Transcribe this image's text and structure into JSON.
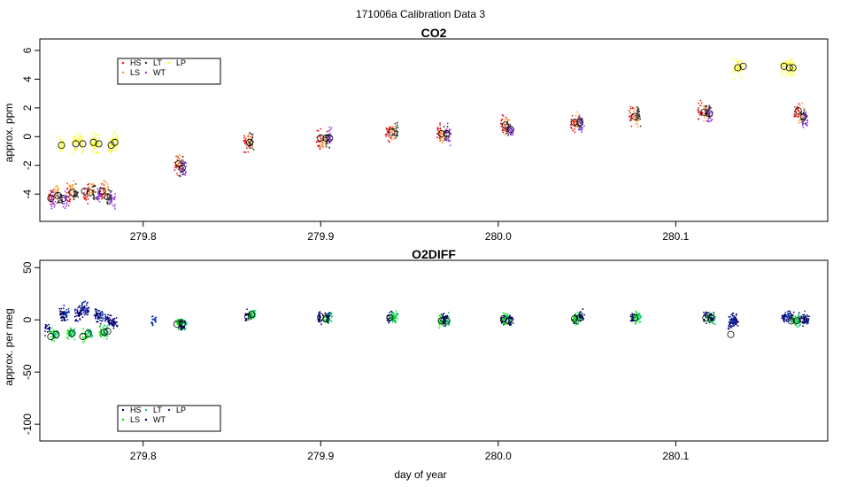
{
  "figure": {
    "title": "171006a   Calibration Data 3",
    "xlabel": "day of year"
  },
  "chart_data": [
    {
      "type": "scatter",
      "title": "CO2",
      "xlabel": "",
      "ylabel": "approx. ppm",
      "xlim": [
        279.7418,
        280.1856
      ],
      "ylim": [
        -5.9,
        6.8
      ],
      "xticks": [
        279.8,
        279.9,
        280.0,
        280.1
      ],
      "yticks": [
        -4,
        -2,
        0,
        2,
        4,
        6
      ],
      "legend": {
        "placement": "top-left",
        "entries": [
          {
            "label": "HS",
            "color": "#ee1111"
          },
          {
            "label": "LS",
            "color": "#ff9933"
          },
          {
            "label": "LT",
            "color": "#333333"
          },
          {
            "label": "WT",
            "color": "#9933ee"
          },
          {
            "label": "LP",
            "color": "#ffff00"
          }
        ]
      },
      "series": [
        {
          "name": "LP",
          "color": "#ffff00",
          "points": [
            [
              279.754,
              -0.6
            ],
            [
              279.762,
              -0.5
            ],
            [
              279.765,
              -0.5
            ],
            [
              279.772,
              -0.4
            ],
            [
              279.774,
              -0.5
            ],
            [
              279.782,
              -0.6
            ],
            [
              279.784,
              -0.4
            ],
            [
              280.134,
              4.8
            ],
            [
              280.137,
              4.9
            ],
            [
              280.161,
              4.9
            ],
            [
              280.164,
              4.8
            ],
            [
              280.166,
              4.8
            ]
          ]
        },
        {
          "name": "HS",
          "color": "#ee1111",
          "points": [
            [
              279.748,
              -4.2
            ],
            [
              279.758,
              -4.0
            ],
            [
              279.768,
              -3.9
            ],
            [
              279.777,
              -3.9
            ],
            [
              279.819,
              -2.0
            ],
            [
              279.858,
              -0.4
            ],
            [
              279.899,
              -0.2
            ],
            [
              279.938,
              0.3
            ],
            [
              279.967,
              0.2
            ],
            [
              280.003,
              0.8
            ],
            [
              280.042,
              1.0
            ],
            [
              280.075,
              1.4
            ],
            [
              280.114,
              1.7
            ],
            [
              280.168,
              1.8
            ]
          ]
        },
        {
          "name": "LS",
          "color": "#ff9933",
          "points": [
            [
              279.751,
              -4.0
            ],
            [
              279.76,
              -3.8
            ],
            [
              279.771,
              -3.7
            ],
            [
              279.779,
              -3.8
            ],
            [
              279.821,
              -1.9
            ],
            [
              279.86,
              -0.5
            ],
            [
              279.902,
              -0.3
            ],
            [
              279.941,
              0.2
            ],
            [
              279.969,
              0.1
            ],
            [
              280.005,
              0.7
            ],
            [
              280.045,
              1.1
            ],
            [
              280.078,
              1.3
            ],
            [
              280.117,
              1.6
            ],
            [
              280.171,
              1.5
            ]
          ]
        },
        {
          "name": "LT",
          "color": "#333333",
          "points": [
            [
              279.753,
              -4.3
            ],
            [
              279.762,
              -4.1
            ],
            [
              279.773,
              -3.9
            ],
            [
              279.781,
              -4.2
            ],
            [
              279.822,
              -2.1
            ],
            [
              279.861,
              -0.4
            ],
            [
              279.904,
              -0.2
            ],
            [
              279.942,
              0.4
            ],
            [
              279.971,
              0.3
            ],
            [
              280.006,
              0.6
            ],
            [
              280.046,
              1.0
            ],
            [
              280.079,
              1.4
            ],
            [
              280.118,
              1.8
            ],
            [
              280.172,
              1.3
            ]
          ]
        },
        {
          "name": "WT",
          "color": "#9933ee",
          "points": [
            [
              279.749,
              -4.4
            ],
            [
              279.756,
              -4.5
            ],
            [
              279.775,
              -4.0
            ],
            [
              279.783,
              -4.3
            ],
            [
              279.823,
              -2.2
            ],
            [
              279.905,
              -0.1
            ],
            [
              279.972,
              0.2
            ],
            [
              280.007,
              0.4
            ],
            [
              280.047,
              0.9
            ],
            [
              280.119,
              1.5
            ],
            [
              280.173,
              1.2
            ]
          ]
        }
      ],
      "means": [
        [
          279.748,
          -4.3
        ],
        [
          279.752,
          -4.1
        ],
        [
          279.755,
          -4.3
        ],
        [
          279.76,
          -3.9
        ],
        [
          279.767,
          -3.8
        ],
        [
          279.77,
          -3.9
        ],
        [
          279.777,
          -3.8
        ],
        [
          279.78,
          -4.2
        ],
        [
          279.754,
          -0.6
        ],
        [
          279.762,
          -0.5
        ],
        [
          279.766,
          -0.5
        ],
        [
          279.772,
          -0.4
        ],
        [
          279.775,
          -0.5
        ],
        [
          279.782,
          -0.6
        ],
        [
          279.784,
          -0.4
        ],
        [
          279.82,
          -1.9
        ],
        [
          279.822,
          -2.2
        ],
        [
          279.86,
          -0.4
        ],
        [
          279.9,
          -0.1
        ],
        [
          279.903,
          -0.1
        ],
        [
          279.905,
          -0.1
        ],
        [
          279.94,
          0.3
        ],
        [
          279.968,
          0.2
        ],
        [
          279.971,
          0.2
        ],
        [
          280.004,
          0.8
        ],
        [
          280.007,
          0.5
        ],
        [
          280.043,
          1.0
        ],
        [
          280.046,
          1.0
        ],
        [
          280.077,
          1.4
        ],
        [
          280.116,
          1.7
        ],
        [
          280.119,
          1.6
        ],
        [
          280.135,
          4.8
        ],
        [
          280.138,
          4.9
        ],
        [
          280.161,
          4.9
        ],
        [
          280.164,
          4.8
        ],
        [
          280.166,
          4.8
        ],
        [
          280.169,
          1.8
        ],
        [
          280.172,
          1.4
        ]
      ]
    },
    {
      "type": "scatter",
      "title": "O2DIFF",
      "xlabel": "day of year",
      "ylabel": "approx. per meg",
      "xlim": [
        279.7418,
        280.1856
      ],
      "ylim": [
        -116,
        57
      ],
      "xticks": [
        279.8,
        279.9,
        280.0,
        280.1
      ],
      "yticks": [
        -100,
        -50,
        0,
        50
      ],
      "legend": {
        "placement": "bottom-left",
        "entries": [
          {
            "label": "HS",
            "color": "#000080"
          },
          {
            "label": "LS",
            "color": "#00ee00"
          },
          {
            "label": "LT",
            "color": "#00cc66"
          },
          {
            "label": "WT",
            "color": "#000066"
          },
          {
            "label": "LP",
            "color": "#1133aa"
          }
        ]
      },
      "series": [
        {
          "name": "HS",
          "color": "#000080",
          "points": [
            [
              279.746,
              -9
            ],
            [
              279.754,
              7
            ],
            [
              279.763,
              5
            ],
            [
              279.768,
              10
            ],
            [
              279.774,
              4
            ],
            [
              279.78,
              0
            ],
            [
              279.784,
              -2
            ],
            [
              279.821,
              -4
            ],
            [
              279.859,
              4
            ],
            [
              279.9,
              3
            ],
            [
              279.939,
              3
            ],
            [
              279.969,
              0
            ],
            [
              280.003,
              1
            ],
            [
              280.043,
              1
            ],
            [
              280.076,
              2
            ],
            [
              280.117,
              3
            ],
            [
              280.131,
              -3
            ],
            [
              280.133,
              1
            ],
            [
              280.161,
              2
            ],
            [
              280.165,
              2
            ],
            [
              280.171,
              0
            ]
          ]
        },
        {
          "name": "LS",
          "color": "#00ee00",
          "points": [
            [
              279.749,
              -15
            ],
            [
              279.758,
              -13
            ],
            [
              279.767,
              -15
            ],
            [
              279.777,
              -12
            ],
            [
              279.82,
              -4
            ],
            [
              279.861,
              4
            ],
            [
              279.903,
              1
            ],
            [
              279.941,
              2
            ],
            [
              279.968,
              -1
            ],
            [
              280.004,
              1
            ],
            [
              280.044,
              1
            ],
            [
              280.078,
              2
            ],
            [
              280.119,
              2
            ],
            [
              280.167,
              -1
            ]
          ]
        },
        {
          "name": "LT",
          "color": "#00cc66",
          "points": [
            [
              279.751,
              -14
            ],
            [
              279.76,
              -13
            ],
            [
              279.77,
              -13
            ],
            [
              279.779,
              -11
            ],
            [
              279.823,
              -3
            ],
            [
              279.862,
              5
            ],
            [
              279.905,
              2
            ],
            [
              279.942,
              3
            ],
            [
              279.971,
              0
            ],
            [
              280.006,
              0
            ],
            [
              280.046,
              2
            ],
            [
              280.079,
              2
            ],
            [
              280.121,
              1
            ],
            [
              280.169,
              0
            ]
          ]
        },
        {
          "name": "WT",
          "color": "#000066",
          "points": [
            [
              279.755,
              3
            ],
            [
              279.765,
              8
            ],
            [
              279.775,
              2
            ],
            [
              279.782,
              -3
            ],
            [
              279.822,
              -5
            ],
            [
              279.904,
              2
            ],
            [
              279.97,
              1
            ],
            [
              280.007,
              0
            ],
            [
              280.047,
              3
            ],
            [
              280.12,
              2
            ],
            [
              280.134,
              -2
            ],
            [
              280.173,
              1
            ]
          ]
        },
        {
          "name": "LP",
          "color": "#1133aa",
          "points": [
            [
              279.757,
              6
            ],
            [
              279.767,
              12
            ],
            [
              279.776,
              5
            ],
            [
              279.806,
              -1
            ],
            [
              280.132,
              0
            ],
            [
              280.163,
              3
            ],
            [
              280.174,
              1
            ]
          ]
        }
      ],
      "means": [
        [
          279.748,
          -16
        ],
        [
          279.751,
          -14
        ],
        [
          279.76,
          -13
        ],
        [
          279.766,
          -16
        ],
        [
          279.769,
          -13
        ],
        [
          279.778,
          -12
        ],
        [
          279.78,
          -11
        ],
        [
          279.819,
          -4
        ],
        [
          279.822,
          -4
        ],
        [
          279.859,
          3
        ],
        [
          279.861,
          5
        ],
        [
          279.9,
          3
        ],
        [
          279.903,
          1
        ],
        [
          279.939,
          2
        ],
        [
          279.968,
          -1
        ],
        [
          279.971,
          -1
        ],
        [
          280.003,
          1
        ],
        [
          280.006,
          -1
        ],
        [
          280.043,
          1
        ],
        [
          280.046,
          2
        ],
        [
          280.077,
          2
        ],
        [
          280.117,
          2
        ],
        [
          280.12,
          2
        ],
        [
          280.131,
          -14
        ],
        [
          280.165,
          -1
        ],
        [
          280.168,
          -1
        ],
        [
          280.172,
          0
        ]
      ]
    }
  ]
}
